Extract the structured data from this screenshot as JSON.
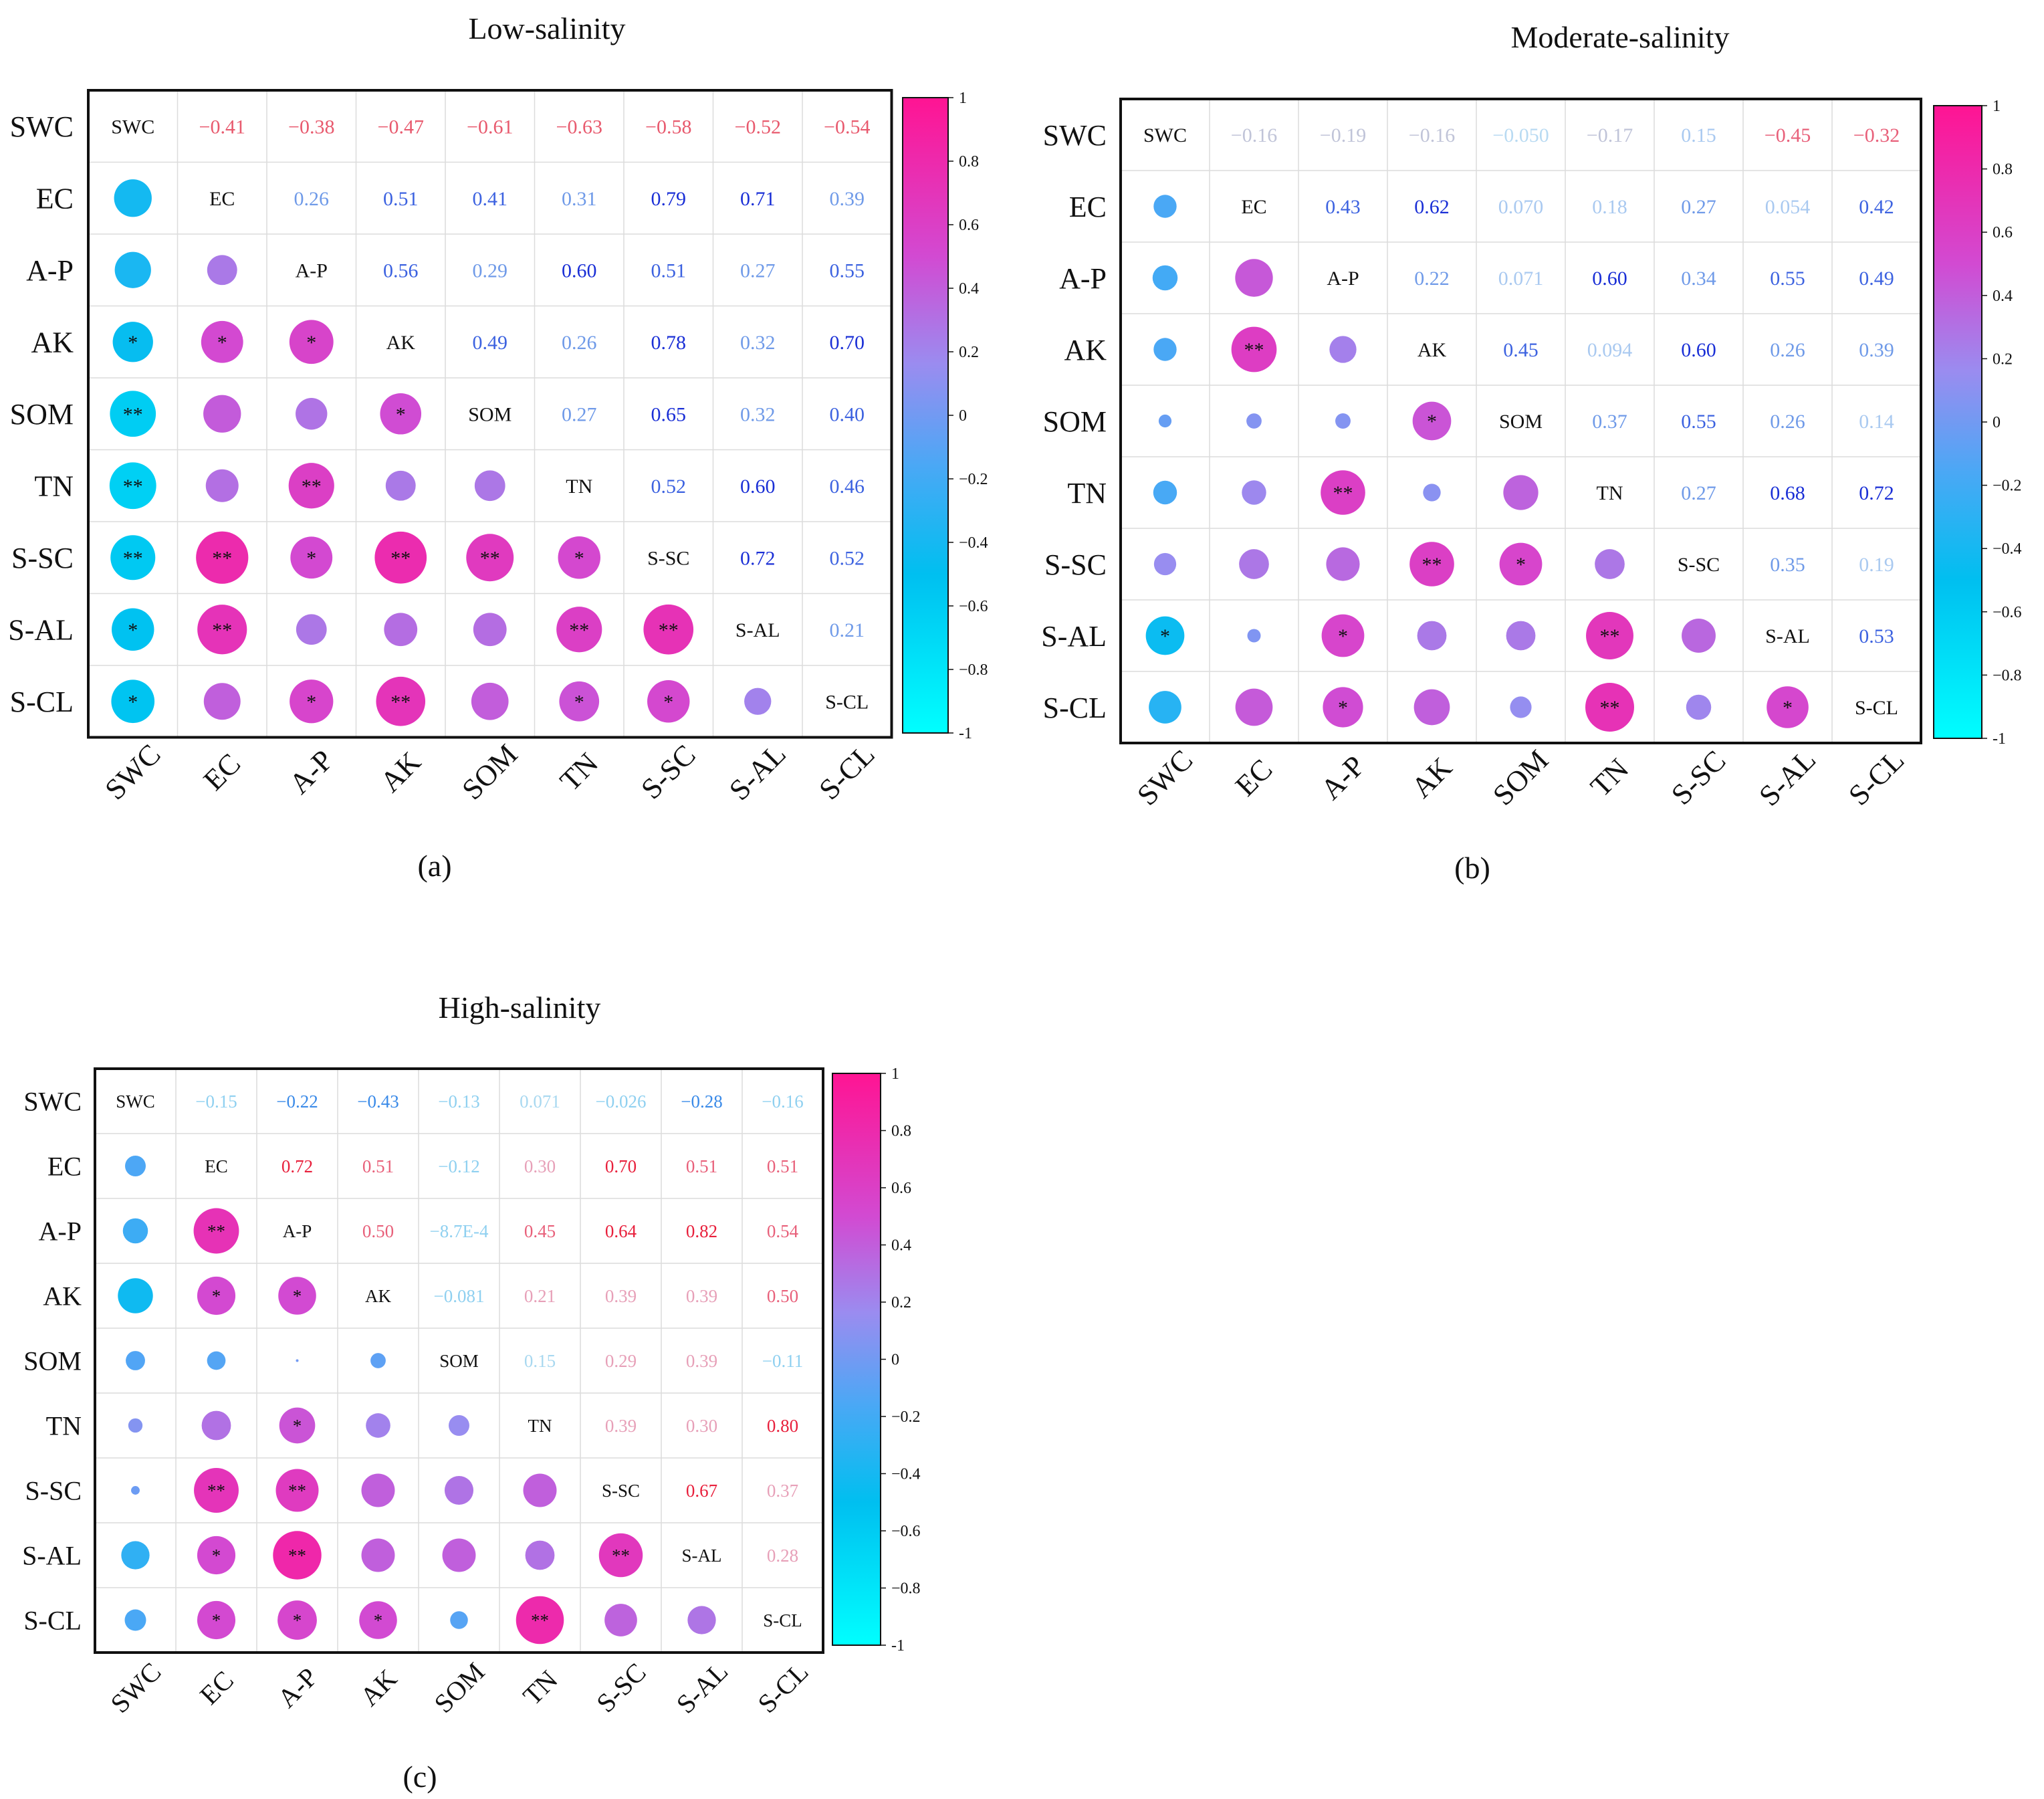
{
  "variables": [
    "SWC",
    "EC",
    "A-P",
    "AK",
    "SOM",
    "TN",
    "S-SC",
    "S-AL",
    "S-CL"
  ],
  "colorbar": {
    "ticks": [
      "1",
      "0.8",
      "0.6",
      "0.4",
      "0.2",
      "0",
      "−0.2",
      "−0.4",
      "−0.6",
      "−0.8",
      "-1"
    ],
    "color_positive": "#ff1493",
    "color_mid_positive": "#9a8cf0",
    "color_mid_negative": "#4aa8f5",
    "color_negative": "#00ffff"
  },
  "chart_data": [
    {
      "type": "heatmap",
      "title": "Low-salinity",
      "panel_label": "(a)",
      "range": [
        -1,
        1
      ],
      "upper_labels": [
        [
          "−0.41",
          "−0.38",
          "−0.47",
          "−0.61",
          "−0.63",
          "−0.58",
          "−0.52",
          "−0.54"
        ],
        [
          "0.26",
          "0.51",
          "0.41",
          "0.31",
          "0.79",
          "0.71",
          "0.39"
        ],
        [
          "0.56",
          "0.29",
          "0.60",
          "0.51",
          "0.27",
          "0.55"
        ],
        [
          "0.49",
          "0.26",
          "0.78",
          "0.32",
          "0.70"
        ],
        [
          "0.27",
          "0.65",
          "0.32",
          "0.40"
        ],
        [
          "0.52",
          "0.60",
          "0.46"
        ],
        [
          "0.72",
          "0.52"
        ],
        [
          "0.21"
        ]
      ],
      "matrix": [
        [
          1,
          -0.41,
          -0.38,
          -0.47,
          -0.61,
          -0.63,
          -0.58,
          -0.52,
          -0.54
        ],
        [
          -0.41,
          1,
          0.26,
          0.51,
          0.41,
          0.31,
          0.79,
          0.71,
          0.39
        ],
        [
          -0.38,
          0.26,
          1,
          0.56,
          0.29,
          0.6,
          0.51,
          0.27,
          0.55
        ],
        [
          -0.47,
          0.51,
          0.56,
          1,
          0.49,
          0.26,
          0.78,
          0.32,
          0.7
        ],
        [
          -0.61,
          0.41,
          0.29,
          0.49,
          1,
          0.27,
          0.65,
          0.32,
          0.4
        ],
        [
          -0.63,
          0.31,
          0.6,
          0.26,
          0.27,
          1,
          0.52,
          0.6,
          0.46
        ],
        [
          -0.58,
          0.79,
          0.51,
          0.78,
          0.65,
          0.52,
          1,
          0.72,
          0.52
        ],
        [
          -0.52,
          0.71,
          0.27,
          0.32,
          0.32,
          0.6,
          0.72,
          1,
          0.21
        ],
        [
          -0.54,
          0.39,
          0.55,
          0.7,
          0.4,
          0.46,
          0.52,
          0.21,
          1
        ]
      ],
      "significance": [
        [
          "",
          "",
          "",
          "",
          "",
          "",
          "",
          "",
          ""
        ],
        [
          "",
          "",
          "",
          "",
          "",
          "",
          "",
          "",
          ""
        ],
        [
          "",
          "",
          "",
          "",
          "",
          "",
          "",
          "",
          ""
        ],
        [
          "*",
          "*",
          "*",
          "",
          "",
          "",
          "",
          "",
          ""
        ],
        [
          "**",
          "",
          "",
          "*",
          "",
          "",
          "",
          "",
          ""
        ],
        [
          "**",
          "",
          "**",
          "",
          "",
          "",
          "",
          "",
          ""
        ],
        [
          "**",
          "**",
          "*",
          "**",
          "**",
          "*",
          "",
          "",
          ""
        ],
        [
          "*",
          "**",
          "",
          "",
          "",
          "**",
          "**",
          "",
          ""
        ],
        [
          "*",
          "",
          "*",
          "**",
          "",
          "*",
          "*",
          "",
          ""
        ]
      ]
    },
    {
      "type": "heatmap",
      "title": "Moderate-salinity",
      "panel_label": "(b)",
      "range": [
        -1,
        1
      ],
      "upper_labels": [
        [
          "−0.16",
          "−0.19",
          "−0.16",
          "−0.050",
          "−0.17",
          "0.15",
          "−0.45",
          "−0.32"
        ],
        [
          "0.43",
          "0.62",
          "0.070",
          "0.18",
          "0.27",
          "0.054",
          "0.42"
        ],
        [
          "0.22",
          "0.071",
          "0.60",
          "0.34",
          "0.55",
          "0.49"
        ],
        [
          "0.45",
          "0.094",
          "0.60",
          "0.26",
          "0.39"
        ],
        [
          "0.37",
          "0.55",
          "0.26",
          "0.14"
        ],
        [
          "0.27",
          "0.68",
          "0.72"
        ],
        [
          "0.35",
          "0.19"
        ],
        [
          "0.53"
        ]
      ],
      "matrix": [
        [
          1,
          -0.16,
          -0.19,
          -0.16,
          -0.05,
          -0.17,
          0.15,
          -0.45,
          -0.32
        ],
        [
          -0.16,
          1,
          0.43,
          0.62,
          0.07,
          0.18,
          0.27,
          0.054,
          0.42
        ],
        [
          -0.19,
          0.43,
          1,
          0.22,
          0.071,
          0.6,
          0.34,
          0.55,
          0.49
        ],
        [
          -0.16,
          0.62,
          0.22,
          1,
          0.45,
          0.094,
          0.6,
          0.26,
          0.39
        ],
        [
          -0.05,
          0.07,
          0.071,
          0.45,
          1,
          0.37,
          0.55,
          0.26,
          0.14
        ],
        [
          -0.17,
          0.18,
          0.6,
          0.094,
          0.37,
          1,
          0.27,
          0.68,
          0.72
        ],
        [
          0.15,
          0.27,
          0.34,
          0.6,
          0.55,
          0.27,
          1,
          0.35,
          0.19
        ],
        [
          -0.45,
          0.054,
          0.55,
          0.26,
          0.26,
          0.68,
          0.35,
          1,
          0.53
        ],
        [
          -0.32,
          0.42,
          0.49,
          0.39,
          0.14,
          0.72,
          0.19,
          0.53,
          1
        ]
      ],
      "significance": [
        [
          "",
          "",
          "",
          "",
          "",
          "",
          "",
          "",
          ""
        ],
        [
          "",
          "",
          "",
          "",
          "",
          "",
          "",
          "",
          ""
        ],
        [
          "",
          "",
          "",
          "",
          "",
          "",
          "",
          "",
          ""
        ],
        [
          "",
          "**",
          "",
          "",
          "",
          "",
          "",
          "",
          ""
        ],
        [
          "",
          "",
          "",
          "*",
          "",
          "",
          "",
          "",
          ""
        ],
        [
          "",
          "",
          "**",
          "",
          "",
          "",
          "",
          "",
          ""
        ],
        [
          "",
          "",
          "",
          "**",
          "*",
          "",
          "",
          "",
          ""
        ],
        [
          "*",
          "",
          "*",
          "",
          "",
          "**",
          "",
          "",
          ""
        ],
        [
          "",
          "",
          "*",
          "",
          "",
          "**",
          "",
          "*",
          ""
        ]
      ]
    },
    {
      "type": "heatmap",
      "title": "High-salinity",
      "panel_label": "(c)",
      "range": [
        -1,
        1
      ],
      "upper_labels": [
        [
          "−0.15",
          "−0.22",
          "−0.43",
          "−0.13",
          "0.071",
          "−0.026",
          "−0.28",
          "−0.16"
        ],
        [
          "0.72",
          "0.51",
          "−0.12",
          "0.30",
          "0.70",
          "0.51",
          "0.51"
        ],
        [
          "0.50",
          "−8.7E-4",
          "0.45",
          "0.64",
          "0.82",
          "0.54"
        ],
        [
          "−0.081",
          "0.21",
          "0.39",
          "0.39",
          "0.50"
        ],
        [
          "0.15",
          "0.29",
          "0.39",
          "−0.11"
        ],
        [
          "0.39",
          "0.30",
          "0.80"
        ],
        [
          "0.67",
          "0.37"
        ],
        [
          "0.28"
        ]
      ],
      "matrix": [
        [
          1,
          -0.15,
          -0.22,
          -0.43,
          -0.13,
          0.071,
          -0.026,
          -0.28,
          -0.16
        ],
        [
          -0.15,
          1,
          0.72,
          0.51,
          -0.12,
          0.3,
          0.7,
          0.51,
          0.51
        ],
        [
          -0.22,
          0.72,
          1,
          0.5,
          -0.00087,
          0.45,
          0.64,
          0.82,
          0.54
        ],
        [
          -0.43,
          0.51,
          0.5,
          1,
          -0.081,
          0.21,
          0.39,
          0.39,
          0.5
        ],
        [
          -0.13,
          -0.12,
          -0.00087,
          -0.081,
          1,
          0.15,
          0.29,
          0.39,
          -0.11
        ],
        [
          0.071,
          0.3,
          0.45,
          0.21,
          0.15,
          1,
          0.39,
          0.3,
          0.8
        ],
        [
          -0.026,
          0.7,
          0.64,
          0.39,
          0.29,
          0.39,
          1,
          0.67,
          0.37
        ],
        [
          -0.28,
          0.51,
          0.82,
          0.39,
          0.39,
          0.3,
          0.67,
          1,
          0.28
        ],
        [
          -0.16,
          0.51,
          0.54,
          0.5,
          -0.11,
          0.8,
          0.37,
          0.28,
          1
        ]
      ],
      "significance": [
        [
          "",
          "",
          "",
          "",
          "",
          "",
          "",
          "",
          ""
        ],
        [
          "",
          "",
          "",
          "",
          "",
          "",
          "",
          "",
          ""
        ],
        [
          "",
          "**",
          "",
          "",
          "",
          "",
          "",
          "",
          ""
        ],
        [
          "",
          "*",
          "*",
          "",
          "",
          "",
          "",
          "",
          ""
        ],
        [
          "",
          "",
          "",
          "",
          "",
          "",
          "",
          "",
          ""
        ],
        [
          "",
          "",
          "*",
          "",
          "",
          "",
          "",
          "",
          ""
        ],
        [
          "",
          "**",
          "**",
          "",
          "",
          "",
          "",
          "",
          ""
        ],
        [
          "",
          "*",
          "**",
          "",
          "",
          "",
          "**",
          "",
          ""
        ],
        [
          "",
          "*",
          "*",
          "*",
          "",
          "**",
          "",
          "",
          ""
        ]
      ]
    }
  ]
}
